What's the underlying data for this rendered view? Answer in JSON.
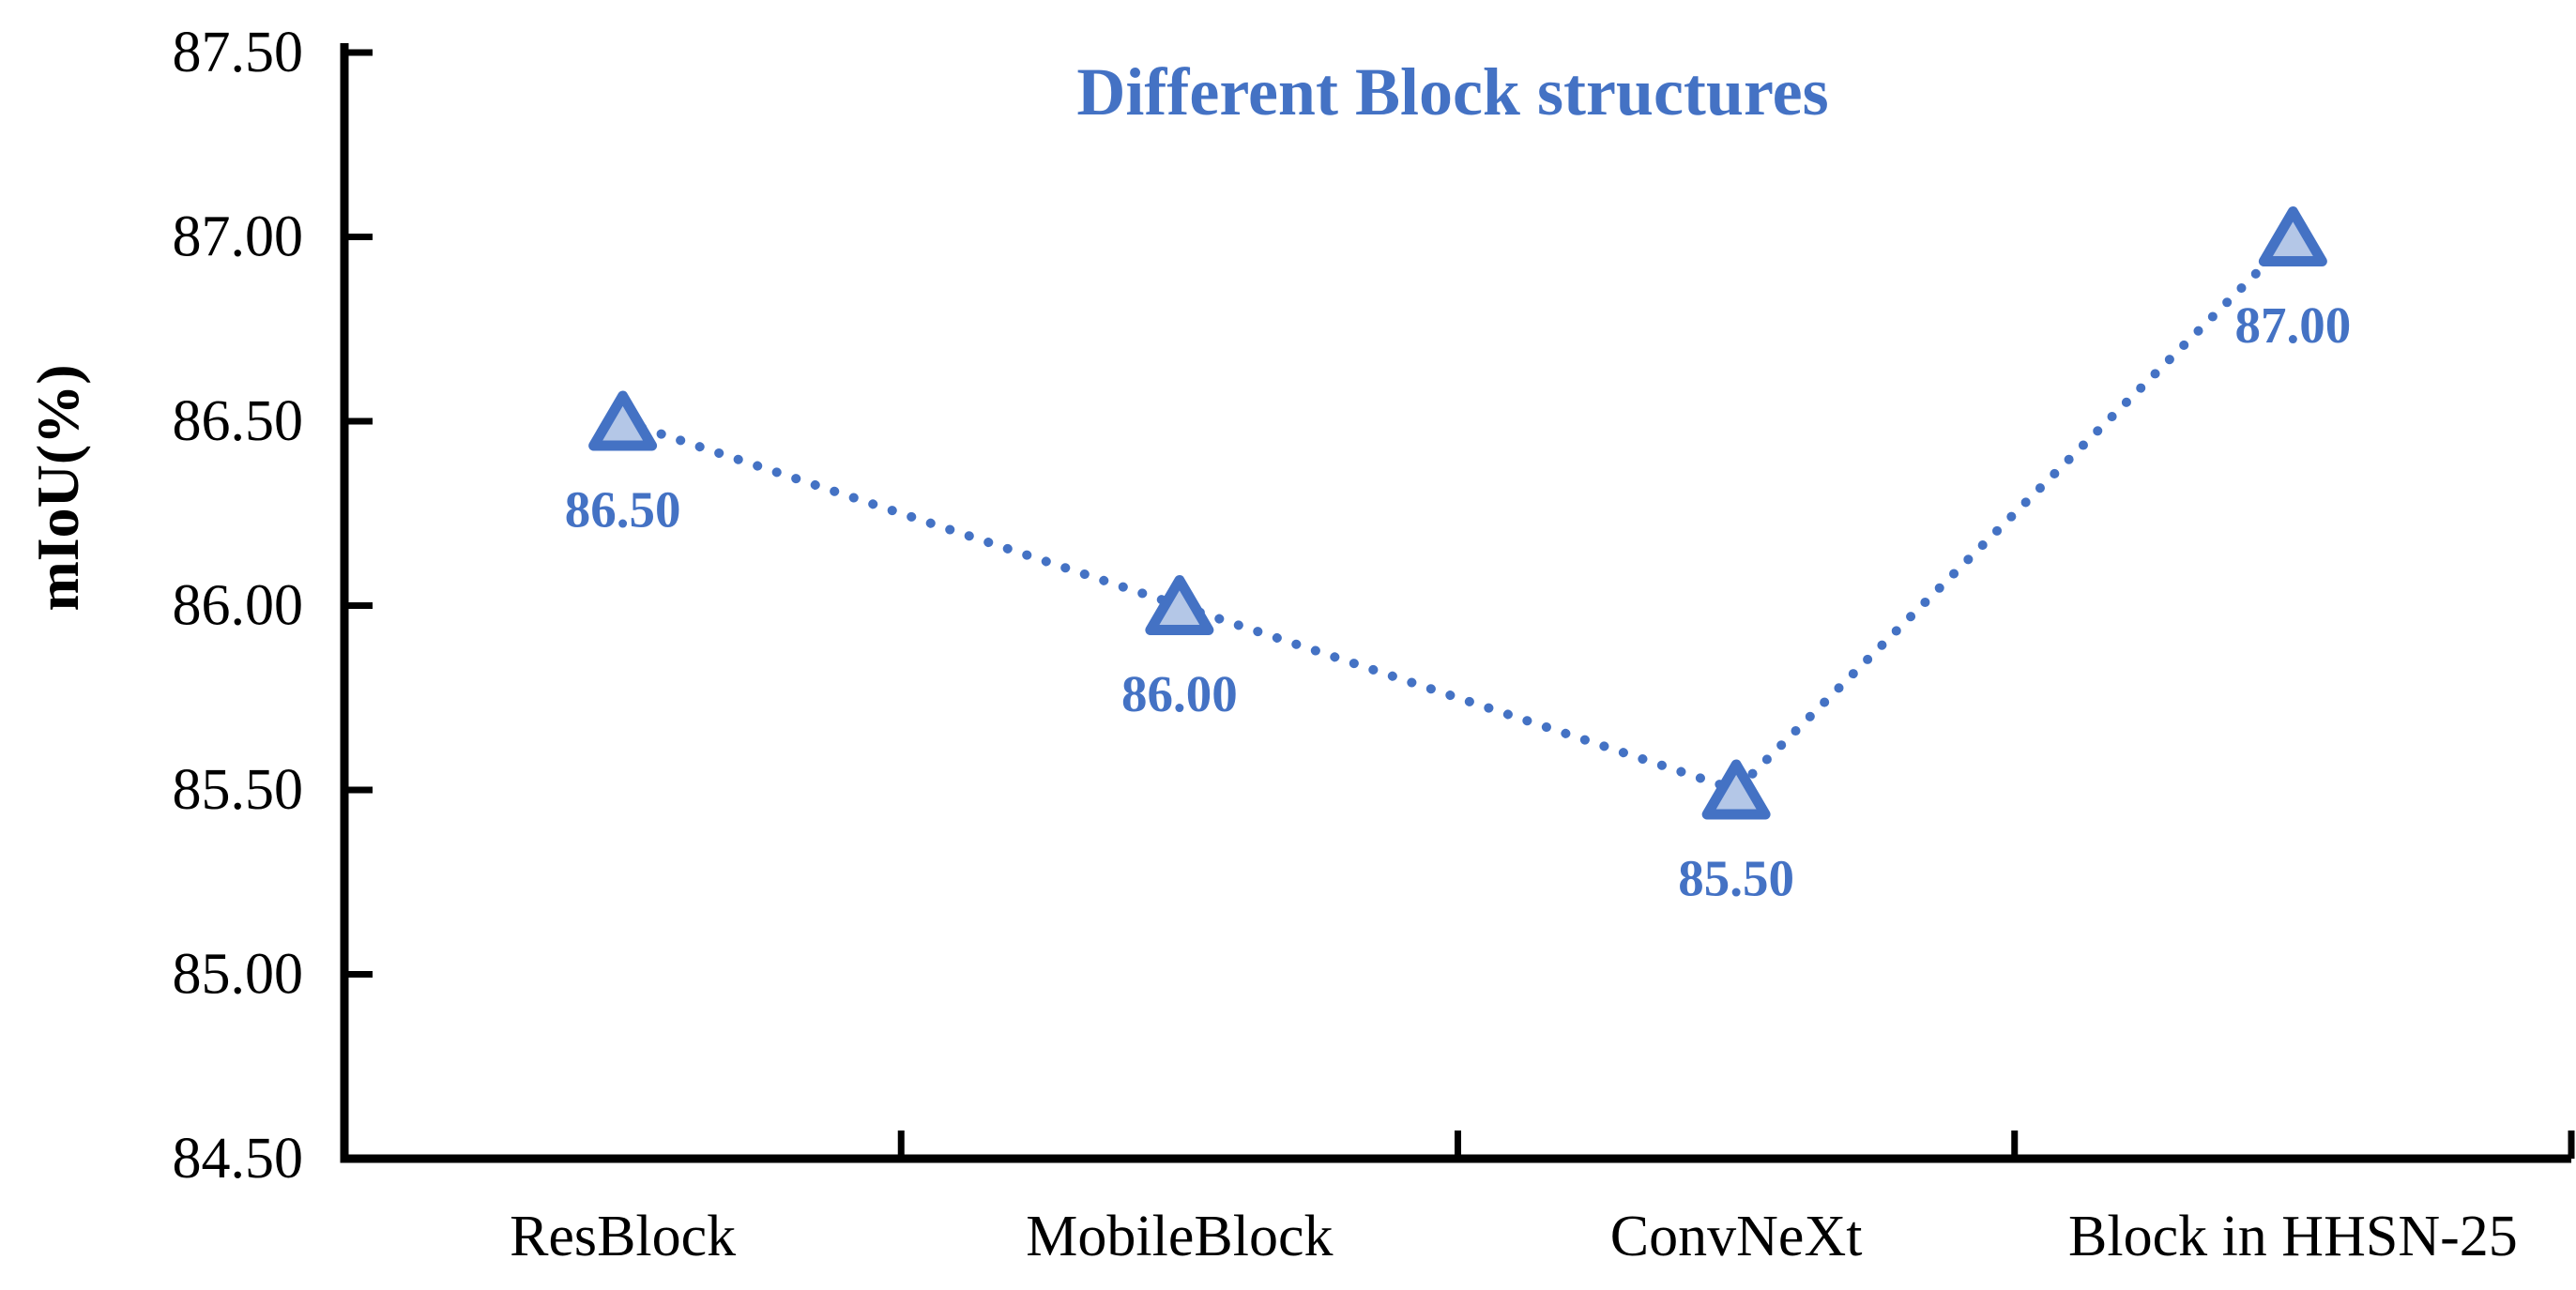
{
  "chart_data": {
    "type": "line",
    "title": "Different Block structures",
    "ylabel": "mIoU(%)",
    "xlabel": "",
    "categories": [
      "ResBlock",
      "MobileBlock",
      "ConvNeXt",
      "Block in HHSN-25"
    ],
    "series": [
      {
        "name": "mIoU",
        "values": [
          86.5,
          86.0,
          85.5,
          87.0
        ]
      }
    ],
    "point_labels": [
      "86.50",
      "86.00",
      "85.50",
      "87.00"
    ],
    "y_ticks": [
      "87.50",
      "87.00",
      "86.50",
      "86.00",
      "85.50",
      "85.00",
      "84.50"
    ],
    "ylim": [
      84.5,
      87.5
    ],
    "y_tick_step": 0.5,
    "grid": "off",
    "legend": "none",
    "line_style": "dotted",
    "marker": "triangle-up",
    "colors": {
      "accent_blue": "#4472C4",
      "marker_fill": "#B4C7E7",
      "axis_black": "#000000",
      "background": "#FFFFFF"
    }
  }
}
